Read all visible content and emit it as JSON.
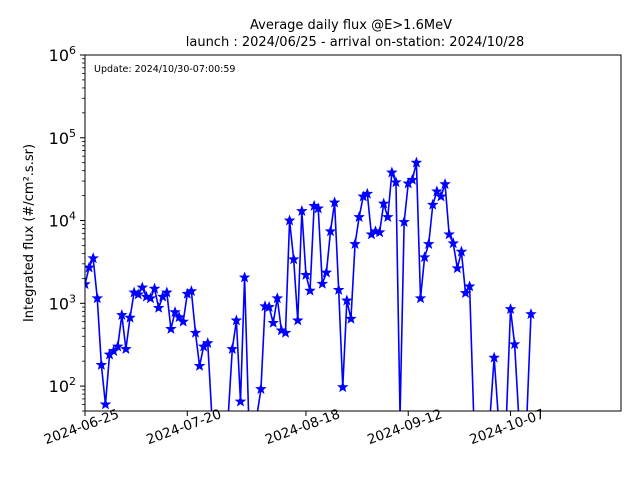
{
  "chart_data": {
    "type": "line",
    "title_line1": "Average daily flux @E>1.6MeV",
    "title_line2": "launch : 2024/06/25 - arrival on-station: 2024/10/28",
    "annotation": "Update: 2024/10/30-07:00:59",
    "ylabel": "Integrated flux (#/cm².s.sr)",
    "xlabel": "",
    "y_scale": "log",
    "ylim": [
      50,
      1000000
    ],
    "xlim": [
      "2024-06-25",
      "2024-11-03"
    ],
    "grid": false,
    "marker": "star",
    "line_color": "#0000ff",
    "y_ticks": [
      {
        "value": 100,
        "label": "10",
        "exp": "2"
      },
      {
        "value": 1000,
        "label": "10",
        "exp": "3"
      },
      {
        "value": 10000,
        "label": "10",
        "exp": "4"
      },
      {
        "value": 100000,
        "label": "10",
        "exp": "5"
      },
      {
        "value": 1000000,
        "label": "10",
        "exp": "6"
      }
    ],
    "x_ticks": [
      "2024-06-25",
      "2024-07-20",
      "2024-08-18",
      "2024-09-12",
      "2024-10-07"
    ],
    "series": [
      {
        "points": [
          [
            "2024-06-25",
            1700
          ],
          [
            "2024-06-26",
            2700
          ],
          [
            "2024-06-27",
            3500
          ],
          [
            "2024-06-28",
            1150
          ],
          [
            "2024-06-29",
            180
          ],
          [
            "2024-06-30",
            60
          ],
          [
            "2024-07-01",
            240
          ],
          [
            "2024-07-02",
            265
          ],
          [
            "2024-07-03",
            300
          ],
          [
            "2024-07-04",
            720
          ],
          [
            "2024-07-05",
            280
          ],
          [
            "2024-07-06",
            670
          ],
          [
            "2024-07-07",
            1350
          ],
          [
            "2024-07-08",
            1280
          ],
          [
            "2024-07-09",
            1550
          ],
          [
            "2024-07-10",
            1200
          ],
          [
            "2024-07-11",
            1150
          ],
          [
            "2024-07-12",
            1500
          ],
          [
            "2024-07-13",
            880
          ],
          [
            "2024-07-14",
            1200
          ],
          [
            "2024-07-15",
            1350
          ],
          [
            "2024-07-16",
            490
          ],
          [
            "2024-07-17",
            780
          ],
          [
            "2024-07-18",
            680
          ],
          [
            "2024-07-19",
            600
          ],
          [
            "2024-07-20",
            1300
          ],
          [
            "2024-07-21",
            1400
          ],
          [
            "2024-07-22",
            440
          ],
          [
            "2024-07-23",
            175
          ],
          [
            "2024-07-24",
            300
          ],
          [
            "2024-07-25",
            330
          ],
          [
            "2024-07-26",
            null
          ],
          [
            "2024-07-27",
            null
          ],
          [
            "2024-07-28",
            null
          ],
          [
            "2024-07-29",
            null
          ],
          [
            "2024-07-30",
            null
          ],
          [
            "2024-07-31",
            280
          ],
          [
            "2024-08-01",
            620
          ],
          [
            "2024-08-02",
            65
          ],
          [
            "2024-08-03",
            2050
          ],
          [
            "2024-08-04",
            null
          ],
          [
            "2024-08-05",
            null
          ],
          [
            "2024-08-06",
            null
          ],
          [
            "2024-08-07",
            92
          ],
          [
            "2024-08-08",
            920
          ],
          [
            "2024-08-09",
            900
          ],
          [
            "2024-08-10",
            580
          ],
          [
            "2024-08-11",
            1150
          ],
          [
            "2024-08-12",
            470
          ],
          [
            "2024-08-13",
            440
          ],
          [
            "2024-08-14",
            10000
          ],
          [
            "2024-08-15",
            3400
          ],
          [
            "2024-08-16",
            620
          ],
          [
            "2024-08-17",
            13000
          ],
          [
            "2024-08-18",
            2200
          ],
          [
            "2024-08-19",
            1420
          ],
          [
            "2024-08-20",
            15000
          ],
          [
            "2024-08-21",
            14000
          ],
          [
            "2024-08-22",
            1720
          ],
          [
            "2024-08-23",
            2350
          ],
          [
            "2024-08-24",
            7400
          ],
          [
            "2024-08-25",
            16500
          ],
          [
            "2024-08-26",
            1450
          ],
          [
            "2024-08-27",
            97
          ],
          [
            "2024-08-28",
            1080
          ],
          [
            "2024-08-29",
            650
          ],
          [
            "2024-08-30",
            5200
          ],
          [
            "2024-08-31",
            11000
          ],
          [
            "2024-09-01",
            19500
          ],
          [
            "2024-09-02",
            21000
          ],
          [
            "2024-09-03",
            6800
          ],
          [
            "2024-09-04",
            7400
          ],
          [
            "2024-09-05",
            7200
          ],
          [
            "2024-09-06",
            16000
          ],
          [
            "2024-09-07",
            11000
          ],
          [
            "2024-09-08",
            38000
          ],
          [
            "2024-09-09",
            29000
          ],
          [
            "2024-09-10",
            null
          ],
          [
            "2024-09-11",
            9600
          ],
          [
            "2024-09-12",
            28000
          ],
          [
            "2024-09-13",
            31000
          ],
          [
            "2024-09-14",
            50000
          ],
          [
            "2024-09-15",
            1150
          ],
          [
            "2024-09-16",
            3600
          ],
          [
            "2024-09-17",
            5200
          ],
          [
            "2024-09-18",
            15500
          ],
          [
            "2024-09-19",
            22500
          ],
          [
            "2024-09-20",
            19500
          ],
          [
            "2024-09-21",
            27500
          ],
          [
            "2024-09-22",
            6800
          ],
          [
            "2024-09-23",
            5300
          ],
          [
            "2024-09-24",
            2650
          ],
          [
            "2024-09-25",
            4200
          ],
          [
            "2024-09-26",
            1330
          ],
          [
            "2024-09-27",
            1600
          ],
          [
            "2024-09-28",
            null
          ],
          [
            "2024-09-29",
            null
          ],
          [
            "2024-09-30",
            null
          ],
          [
            "2024-10-01",
            null
          ],
          [
            "2024-10-02",
            null
          ],
          [
            "2024-10-03",
            220
          ],
          [
            "2024-10-04",
            null
          ],
          [
            "2024-10-05",
            null
          ],
          [
            "2024-10-06",
            null
          ],
          [
            "2024-10-07",
            850
          ],
          [
            "2024-10-08",
            320
          ],
          [
            "2024-10-09",
            null
          ],
          [
            "2024-10-10",
            null
          ],
          [
            "2024-10-11",
            null
          ],
          [
            "2024-10-12",
            740
          ]
        ]
      }
    ]
  }
}
